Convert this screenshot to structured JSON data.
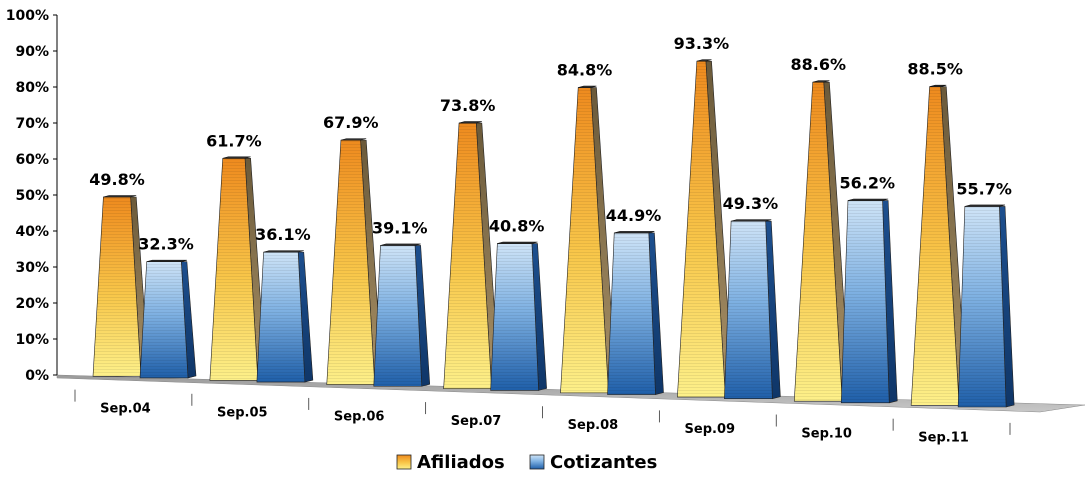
{
  "chart_data": {
    "type": "bar",
    "categories": [
      "Sep.04",
      "Sep.05",
      "Sep.06",
      "Sep.07",
      "Sep.08",
      "Sep.09",
      "Sep.10",
      "Sep.11"
    ],
    "series": [
      {
        "name": "Afiliados",
        "values": [
          49.8,
          61.7,
          67.9,
          73.8,
          84.8,
          93.3,
          88.6,
          88.5
        ],
        "labels": [
          "49.8%",
          "61.7%",
          "67.9%",
          "73.8%",
          "84.8%",
          "93.3%",
          "88.6%",
          "88.5%"
        ],
        "color": "#f2a93b"
      },
      {
        "name": "Cotizantes",
        "values": [
          32.3,
          36.1,
          39.1,
          40.8,
          44.9,
          49.3,
          56.2,
          55.7
        ],
        "labels": [
          "32.3%",
          "36.1%",
          "39.1%",
          "40.8%",
          "44.9%",
          "49.3%",
          "56.2%",
          "55.7%"
        ],
        "color": "#3f7fc4"
      }
    ],
    "y_ticks": [
      "0%",
      "10%",
      "20%",
      "30%",
      "40%",
      "50%",
      "60%",
      "70%",
      "80%",
      "90%",
      "100%"
    ],
    "ylim": [
      0,
      100
    ],
    "y_unit": "%",
    "legend_position": "bottom-center",
    "style": "3d-pyramid-bars",
    "grid": false
  }
}
